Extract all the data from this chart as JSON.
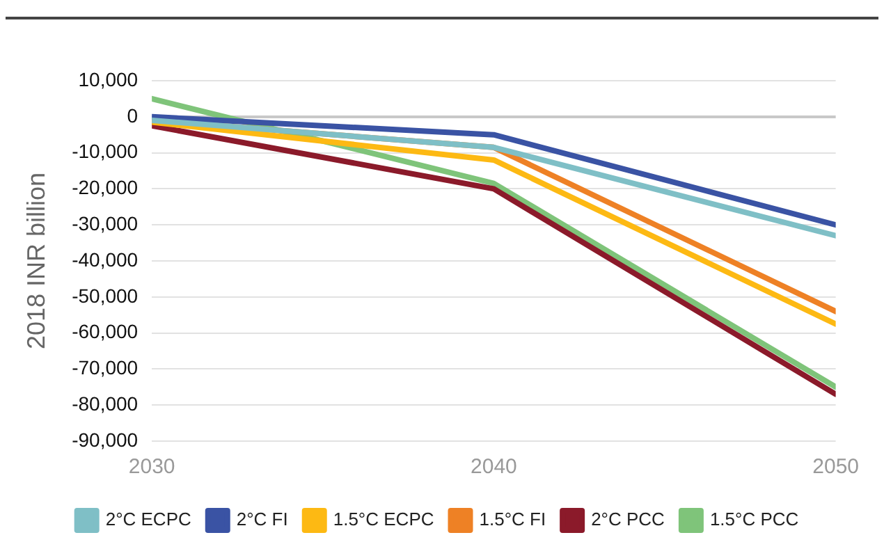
{
  "chart_data": {
    "type": "line",
    "ylabel": "2018 INR billion",
    "x": [
      2030,
      2040,
      2050
    ],
    "series": [
      {
        "name": "2°C ECPC",
        "color": "#7fbfc6",
        "values": [
          -1000,
          -8500,
          -33000
        ]
      },
      {
        "name": "2°C FI",
        "color": "#3a53a4",
        "values": [
          0,
          -5000,
          -30000
        ]
      },
      {
        "name": "1.5°C ECPC",
        "color": "#fdb913",
        "values": [
          -1500,
          -12000,
          -57500
        ]
      },
      {
        "name": "1.5°C FI",
        "color": "#ee8125",
        "values": [
          -1000,
          -8500,
          -54000
        ]
      },
      {
        "name": "2°C PCC",
        "color": "#8b1a2a",
        "values": [
          -2500,
          -20000,
          -77000
        ]
      },
      {
        "name": "1.5°C PCC",
        "color": "#7fc47a",
        "values": [
          5000,
          -18500,
          -75000
        ]
      }
    ],
    "xlim": [
      2030,
      2050
    ],
    "xticks": [
      2030,
      2040,
      2050
    ],
    "ylim": [
      -90000,
      10000
    ],
    "yticks": [
      {
        "value": -90000,
        "label": "-90,000"
      },
      {
        "value": -80000,
        "label": "-80,000"
      },
      {
        "value": -70000,
        "label": "-70,000"
      },
      {
        "value": -60000,
        "label": "-60,000"
      },
      {
        "value": -50000,
        "label": "-50,000"
      },
      {
        "value": -40000,
        "label": "-40,000"
      },
      {
        "value": -30000,
        "label": "-30,000"
      },
      {
        "value": -20000,
        "label": "-20,000"
      },
      {
        "value": -10000,
        "label": "-10,000"
      },
      0,
      {
        "value": 10000,
        "label": "10,000"
      }
    ],
    "grid": "y",
    "legend": "bottom",
    "marker": "none",
    "line_style": "solid"
  }
}
